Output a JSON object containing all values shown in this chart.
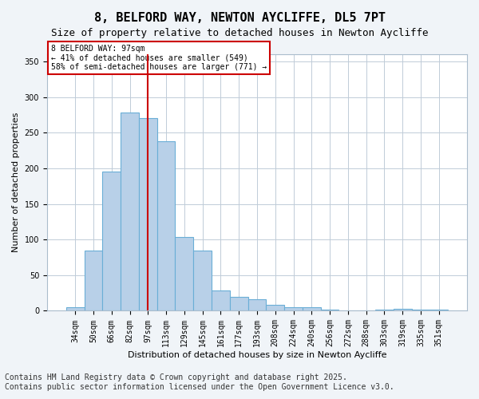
{
  "title": "8, BELFORD WAY, NEWTON AYCLIFFE, DL5 7PT",
  "subtitle": "Size of property relative to detached houses in Newton Aycliffe",
  "xlabel": "Distribution of detached houses by size in Newton Aycliffe",
  "ylabel": "Number of detached properties",
  "categories": [
    "34sqm",
    "50sqm",
    "66sqm",
    "82sqm",
    "97sqm",
    "113sqm",
    "129sqm",
    "145sqm",
    "161sqm",
    "177sqm",
    "193sqm",
    "208sqm",
    "224sqm",
    "240sqm",
    "256sqm",
    "272sqm",
    "288sqm",
    "303sqm",
    "319sqm",
    "335sqm",
    "351sqm"
  ],
  "values": [
    5,
    85,
    195,
    278,
    270,
    238,
    104,
    85,
    28,
    20,
    16,
    8,
    5,
    5,
    2,
    0,
    0,
    2,
    3,
    2,
    2
  ],
  "bar_color": "#b8d0e8",
  "bar_edge_color": "#6aaed6",
  "vline_x_index": 4,
  "vline_color": "#cc0000",
  "ylim": [
    0,
    360
  ],
  "yticks": [
    0,
    50,
    100,
    150,
    200,
    250,
    300,
    350
  ],
  "annotation_text": "8 BELFORD WAY: 97sqm\n← 41% of detached houses are smaller (549)\n58% of semi-detached houses are larger (771) →",
  "annotation_box_color": "#ffffff",
  "annotation_box_edge": "#cc0000",
  "footer_line1": "Contains HM Land Registry data © Crown copyright and database right 2025.",
  "footer_line2": "Contains public sector information licensed under the Open Government Licence v3.0.",
  "bg_color": "#f0f4f8",
  "plot_bg_color": "#ffffff",
  "title_fontsize": 11,
  "subtitle_fontsize": 9,
  "tick_fontsize": 7,
  "label_fontsize": 8,
  "footer_fontsize": 7
}
